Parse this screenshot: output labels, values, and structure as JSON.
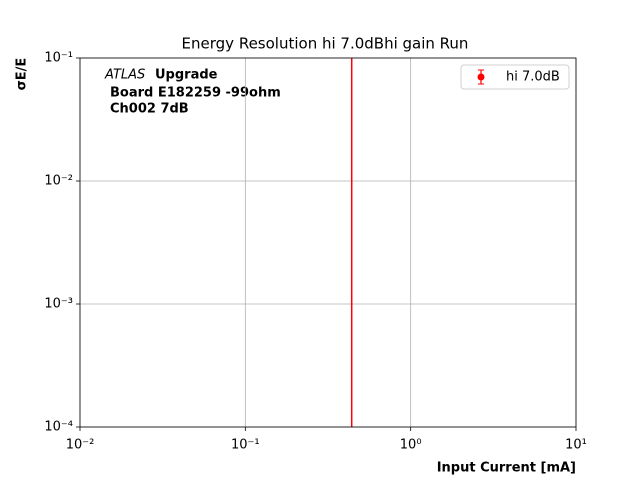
{
  "chart_data": {
    "type": "vline",
    "title": "Energy Resolution hi 7.0dBhi gain Run",
    "xlabel": "Input Current [mA]",
    "ylabel": "σE/E",
    "atlas_label": "ATLAS",
    "annotation": [
      "Upgrade",
      "Board E182259 -99ohm",
      "Ch002 7dB"
    ],
    "series": [
      {
        "name": "hi 7.0dB",
        "color": "#ff0000",
        "x": [
          0.44
        ]
      }
    ],
    "xscale": "log",
    "yscale": "log",
    "xlim": [
      0.01,
      10
    ],
    "ylim": [
      0.0001,
      0.1
    ],
    "xticks": [
      {
        "value": 0.01,
        "label": "10⁻²"
      },
      {
        "value": 0.1,
        "label": "10⁻¹"
      },
      {
        "value": 1,
        "label": "10⁰"
      },
      {
        "value": 10,
        "label": "10¹"
      }
    ],
    "yticks": [
      {
        "value": 0.0001,
        "label": "10⁻⁴"
      },
      {
        "value": 0.001,
        "label": "10⁻³"
      },
      {
        "value": 0.01,
        "label": "10⁻²"
      },
      {
        "value": 0.1,
        "label": "10⁻¹"
      }
    ],
    "grid": true,
    "legend": "upper right"
  }
}
